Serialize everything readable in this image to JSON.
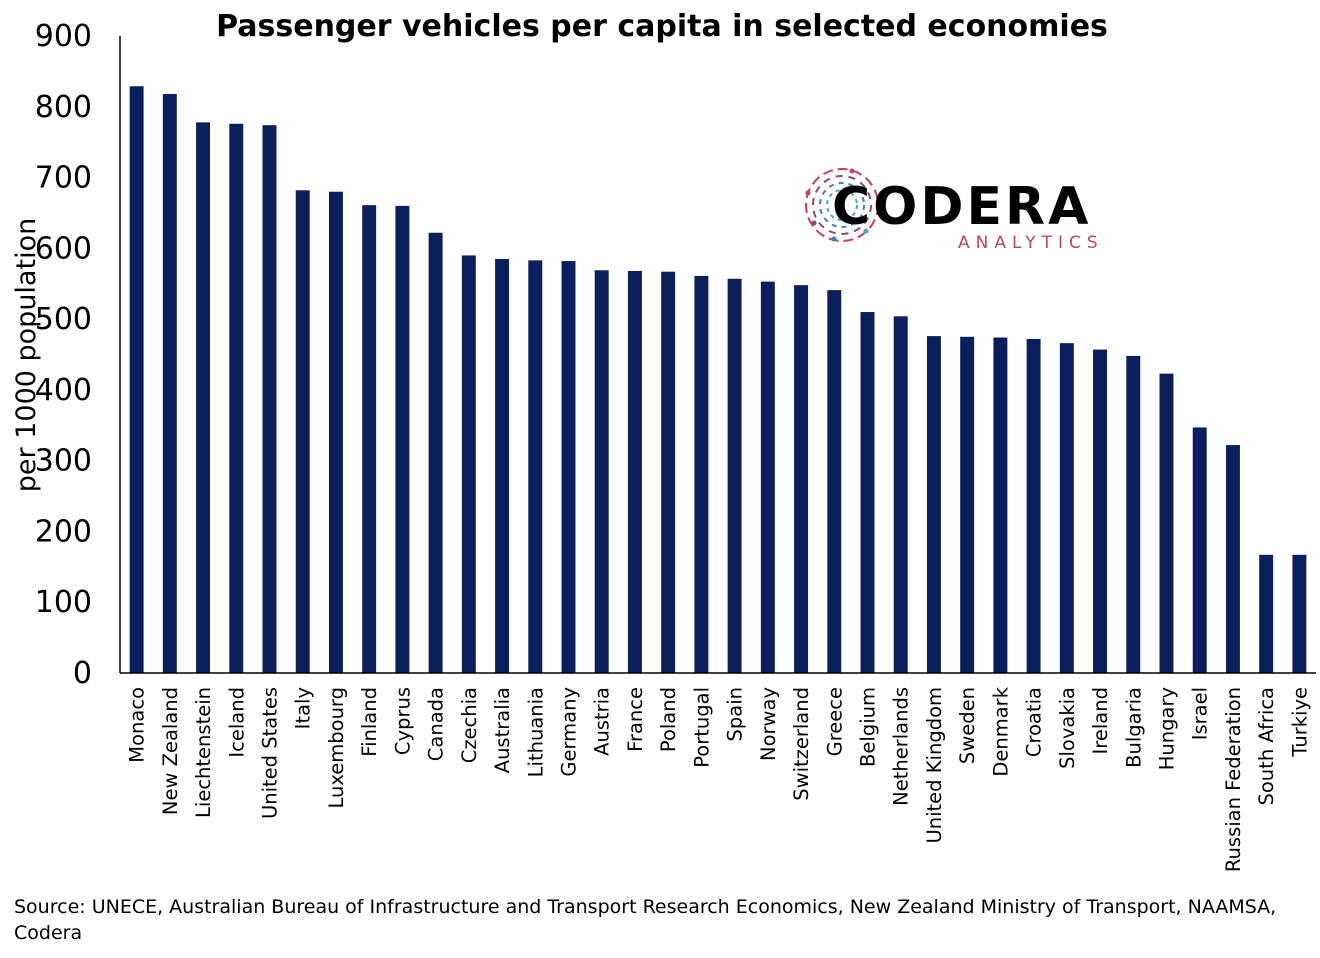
{
  "chart_data": {
    "type": "bar",
    "title": "Passenger vehicles per capita in selected economies",
    "xlabel": "",
    "ylabel": "per 1000 population",
    "ylim": [
      0,
      900
    ],
    "yticks": [
      0,
      100,
      200,
      300,
      400,
      500,
      600,
      700,
      800,
      900
    ],
    "grid": false,
    "legend": "none",
    "bar_color": "#0b1f5c",
    "categories": [
      "Monaco",
      "New Zealand",
      "Liechtenstein",
      "Iceland",
      "United States",
      "Italy",
      "Luxembourg",
      "Finland",
      "Cyprus",
      "Canada",
      "Czechia",
      "Australia",
      "Lithuania",
      "Germany",
      "Austria",
      "France",
      "Poland",
      "Portugal",
      "Spain",
      "Norway",
      "Switzerland",
      "Greece",
      "Belgium",
      "Netherlands",
      "United Kingdom",
      "Sweden",
      "Denmark",
      "Croatia",
      "Slovakia",
      "Ireland",
      "Bulgaria",
      "Hungary",
      "Israel",
      "Russian Federation",
      "South Africa",
      "Turkiye"
    ],
    "values": [
      829,
      818,
      778,
      776,
      774,
      682,
      680,
      661,
      660,
      622,
      590,
      585,
      583,
      582,
      569,
      568,
      567,
      561,
      557,
      553,
      548,
      541,
      510,
      504,
      476,
      475,
      474,
      472,
      466,
      457,
      448,
      423,
      347,
      322,
      167,
      167
    ]
  },
  "logo": {
    "word": "CODERA",
    "sub": "ANALYTICS",
    "icon": "codera-circuit-icon"
  },
  "source": "Source: UNECE, Australian Bureau of Infrastructure and Transport Research Economics, New Zealand Ministry of Transport, NAAMSA, Codera"
}
